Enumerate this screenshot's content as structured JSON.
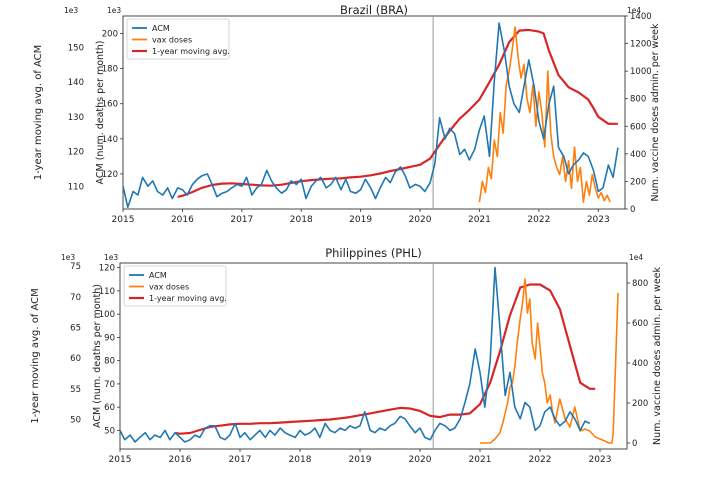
{
  "chart_data": [
    {
      "type": "line",
      "title": "Brazil (BRA)",
      "xlabel": "",
      "ylabel_outer": "1-year moving avg. of ACM",
      "ylabel_left": "ACM (num. deaths per month)",
      "ylabel_right": "Num. vaccine doses admin. per week",
      "left_exponent": "1e3",
      "outer_exponent": "1e3",
      "right_exponent": "1e4",
      "xlim": [
        2015.0,
        2023.45
      ],
      "x_ticks": [
        2015,
        2016,
        2017,
        2018,
        2019,
        2020,
        2021,
        2022,
        2023
      ],
      "x_tick_labels": [
        "2015",
        "2016",
        "2017",
        "2018",
        "2019",
        "2020",
        "2021",
        "2022",
        "2023"
      ],
      "ylim_left": [
        100,
        210
      ],
      "y_ticks_left": [
        120,
        140,
        160,
        180,
        200
      ],
      "ylim_outer": [
        103.5,
        159
      ],
      "y_ticks_outer": [
        110,
        120,
        130,
        140,
        150
      ],
      "ylim_right": [
        0,
        1400
      ],
      "y_ticks_right": [
        0,
        200,
        400,
        600,
        800,
        1000,
        1200,
        1400
      ],
      "vline_x": 2020.22,
      "legend": [
        "ACM",
        "vax doses",
        "1-year moving avg."
      ],
      "legend_position": "top-left",
      "series": [
        {
          "name": "ACM",
          "axis": "left",
          "color": "#1f77b4",
          "x": [
            2015.0,
            2015.08,
            2015.17,
            2015.25,
            2015.33,
            2015.42,
            2015.5,
            2015.58,
            2015.67,
            2015.75,
            2015.83,
            2015.92,
            2016.0,
            2016.08,
            2016.17,
            2016.25,
            2016.33,
            2016.42,
            2016.5,
            2016.58,
            2016.67,
            2016.75,
            2016.83,
            2016.92,
            2017.0,
            2017.08,
            2017.17,
            2017.25,
            2017.33,
            2017.42,
            2017.5,
            2017.58,
            2017.67,
            2017.75,
            2017.83,
            2017.92,
            2018.0,
            2018.08,
            2018.17,
            2018.25,
            2018.33,
            2018.42,
            2018.5,
            2018.58,
            2018.67,
            2018.75,
            2018.83,
            2018.92,
            2019.0,
            2019.08,
            2019.17,
            2019.25,
            2019.33,
            2019.42,
            2019.5,
            2019.58,
            2019.67,
            2019.75,
            2019.83,
            2019.92,
            2020.0,
            2020.08,
            2020.17,
            2020.25,
            2020.33,
            2020.42,
            2020.5,
            2020.58,
            2020.67,
            2020.75,
            2020.83,
            2020.92,
            2021.0,
            2021.08,
            2021.17,
            2021.25,
            2021.33,
            2021.42,
            2021.5,
            2021.58,
            2021.67,
            2021.75,
            2021.83,
            2021.92,
            2022.0,
            2022.08,
            2022.17,
            2022.25,
            2022.33,
            2022.42,
            2022.5,
            2022.58,
            2022.67,
            2022.75,
            2022.83,
            2022.92,
            2023.0,
            2023.08,
            2023.17,
            2023.25,
            2023.33
          ],
          "values": [
            113,
            101,
            110,
            108,
            118,
            113,
            116,
            110,
            108,
            112,
            106,
            112,
            111,
            108,
            114,
            117,
            119,
            120,
            114,
            107,
            109,
            110,
            112,
            114,
            113,
            118,
            108,
            112,
            114,
            122,
            116,
            112,
            109,
            111,
            116,
            114,
            117,
            106,
            113,
            116,
            118,
            112,
            114,
            118,
            111,
            117,
            110,
            109,
            111,
            117,
            112,
            106,
            112,
            118,
            115,
            121,
            124,
            119,
            112,
            114,
            113,
            110,
            115,
            126,
            152,
            140,
            146,
            143,
            131,
            134,
            128,
            134,
            145,
            153,
            130,
            173,
            206,
            190,
            170,
            160,
            155,
            170,
            185,
            170,
            150,
            140,
            160,
            170,
            135,
            130,
            120,
            125,
            128,
            132,
            130,
            122,
            110,
            112,
            125,
            118,
            135
          ]
        },
        {
          "name": "vax doses",
          "axis": "right",
          "color": "#ff7f0e",
          "x": [
            2021.0,
            2021.05,
            2021.1,
            2021.15,
            2021.2,
            2021.25,
            2021.3,
            2021.35,
            2021.4,
            2021.45,
            2021.5,
            2021.55,
            2021.6,
            2021.65,
            2021.7,
            2021.75,
            2021.8,
            2021.85,
            2021.9,
            2021.95,
            2022.0,
            2022.05,
            2022.1,
            2022.15,
            2022.2,
            2022.25,
            2022.3,
            2022.35,
            2022.4,
            2022.45,
            2022.5,
            2022.55,
            2022.6,
            2022.65,
            2022.7,
            2022.75,
            2022.8,
            2022.85,
            2022.9,
            2022.95,
            2023.0,
            2023.05,
            2023.1,
            2023.15,
            2023.2
          ],
          "values": [
            50,
            200,
            120,
            300,
            220,
            500,
            380,
            700,
            550,
            900,
            1000,
            1150,
            1320,
            1100,
            950,
            1050,
            800,
            700,
            900,
            600,
            850,
            700,
            450,
            1000,
            550,
            380,
            300,
            250,
            380,
            200,
            350,
            150,
            450,
            200,
            300,
            50,
            200,
            100,
            250,
            150,
            80,
            120,
            60,
            100,
            50
          ]
        },
        {
          "name": "1-year moving avg.",
          "axis": "outer",
          "color": "#d62728",
          "x": [
            2015.92,
            2016.0,
            2016.17,
            2016.33,
            2016.5,
            2016.67,
            2016.83,
            2017.0,
            2017.17,
            2017.33,
            2017.5,
            2017.67,
            2017.83,
            2018.0,
            2018.17,
            2018.33,
            2018.5,
            2018.67,
            2018.83,
            2019.0,
            2019.17,
            2019.33,
            2019.5,
            2019.67,
            2019.83,
            2020.0,
            2020.17,
            2020.33,
            2020.5,
            2020.67,
            2020.83,
            2021.0,
            2021.17,
            2021.33,
            2021.5,
            2021.67,
            2021.83,
            2022.0,
            2022.08,
            2022.17,
            2022.33,
            2022.5,
            2022.67,
            2022.83,
            2022.92,
            2023.0,
            2023.17,
            2023.33
          ],
          "values": [
            107.0,
            107.3,
            108.4,
            109.6,
            110.4,
            110.8,
            110.9,
            110.7,
            110.5,
            110.3,
            110.2,
            110.5,
            111.0,
            111.5,
            111.8,
            112.0,
            112.2,
            112.3,
            112.6,
            112.8,
            113.2,
            113.7,
            114.4,
            115.0,
            115.6,
            116.2,
            118.0,
            122.0,
            126.0,
            129.5,
            132.0,
            135.0,
            140.0,
            145.0,
            151.5,
            154.8,
            155.0,
            154.5,
            154.0,
            149.0,
            142.0,
            138.5,
            137.0,
            135.0,
            132.5,
            130.0,
            128.0,
            128.0
          ]
        }
      ]
    },
    {
      "type": "line",
      "title": "Philippines (PHL)",
      "xlabel": "",
      "ylabel_outer": "1-year moving avg. of ACM",
      "ylabel_left": "ACM (num. deaths per month)",
      "ylabel_right": "Num. vaccine doses admin. per week",
      "left_exponent": "1e3",
      "outer_exponent": "1e3",
      "right_exponent": "1e4",
      "xlim": [
        2015.0,
        2023.45
      ],
      "x_ticks": [
        2015,
        2016,
        2017,
        2018,
        2019,
        2020,
        2021,
        2022,
        2023
      ],
      "x_tick_labels": [
        "2015",
        "2016",
        "2017",
        "2018",
        "2019",
        "2020",
        "2021",
        "2022",
        "2023"
      ],
      "ylim_left": [
        42,
        122
      ],
      "y_ticks_left": [
        50,
        60,
        70,
        80,
        90,
        100,
        110,
        120
      ],
      "ylim_outer": [
        45.2,
        75.5
      ],
      "y_ticks_outer": [
        50,
        55,
        60,
        65,
        70,
        75
      ],
      "ylim_right": [
        -30,
        900
      ],
      "y_ticks_right": [
        0,
        200,
        400,
        600,
        800
      ],
      "vline_x": 2020.22,
      "legend": [
        "ACM",
        "vax doses",
        "1-year moving avg."
      ],
      "legend_position": "top-left",
      "series": [
        {
          "name": "ACM",
          "axis": "left",
          "color": "#1f77b4",
          "x": [
            2015.0,
            2015.08,
            2015.17,
            2015.25,
            2015.33,
            2015.42,
            2015.5,
            2015.58,
            2015.67,
            2015.75,
            2015.83,
            2015.92,
            2016.0,
            2016.08,
            2016.17,
            2016.25,
            2016.33,
            2016.42,
            2016.5,
            2016.58,
            2016.67,
            2016.75,
            2016.83,
            2016.92,
            2017.0,
            2017.08,
            2017.17,
            2017.25,
            2017.33,
            2017.42,
            2017.5,
            2017.58,
            2017.67,
            2017.75,
            2017.83,
            2017.92,
            2018.0,
            2018.08,
            2018.17,
            2018.25,
            2018.33,
            2018.42,
            2018.5,
            2018.58,
            2018.67,
            2018.75,
            2018.83,
            2018.92,
            2019.0,
            2019.08,
            2019.17,
            2019.25,
            2019.33,
            2019.42,
            2019.5,
            2019.58,
            2019.67,
            2019.75,
            2019.83,
            2019.92,
            2020.0,
            2020.08,
            2020.17,
            2020.25,
            2020.33,
            2020.42,
            2020.5,
            2020.58,
            2020.67,
            2020.75,
            2020.83,
            2020.92,
            2021.0,
            2021.08,
            2021.17,
            2021.25,
            2021.33,
            2021.42,
            2021.5,
            2021.58,
            2021.67,
            2021.75,
            2021.83,
            2021.92,
            2022.0,
            2022.08,
            2022.17,
            2022.25,
            2022.33,
            2022.42,
            2022.5,
            2022.58,
            2022.67,
            2022.75,
            2022.83
          ],
          "values": [
            50,
            46,
            48,
            45,
            47,
            49,
            46,
            48,
            47,
            50,
            46,
            49,
            47,
            45,
            46,
            48,
            47,
            51,
            52,
            52,
            47,
            46,
            48,
            53,
            47,
            49,
            46,
            48,
            50,
            47,
            50,
            48,
            51,
            49,
            48,
            47,
            50,
            48,
            49,
            51,
            47,
            53,
            50,
            49,
            51,
            50,
            52,
            51,
            52,
            58,
            50,
            49,
            51,
            50,
            52,
            53,
            56,
            55,
            52,
            49,
            51,
            47,
            46,
            50,
            53,
            52,
            50,
            51,
            55,
            62,
            70,
            85,
            75,
            60,
            80,
            120,
            95,
            65,
            75,
            60,
            55,
            62,
            60,
            50,
            52,
            58,
            60,
            55,
            52,
            54,
            58,
            55,
            50,
            54,
            53
          ]
        },
        {
          "name": "vax doses",
          "axis": "right",
          "color": "#ff7f0e",
          "x": [
            2021.0,
            2021.08,
            2021.17,
            2021.25,
            2021.33,
            2021.38,
            2021.42,
            2021.46,
            2021.5,
            2021.54,
            2021.58,
            2021.62,
            2021.67,
            2021.71,
            2021.75,
            2021.79,
            2021.83,
            2021.87,
            2021.92,
            2021.96,
            2022.0,
            2022.04,
            2022.08,
            2022.12,
            2022.17,
            2022.21,
            2022.25,
            2022.33,
            2022.42,
            2022.5,
            2022.58,
            2022.67,
            2022.75,
            2022.83,
            2022.92,
            2023.0,
            2023.08,
            2023.15,
            2023.2,
            2023.22,
            2023.26,
            2023.3
          ],
          "values": [
            0,
            0,
            0,
            20,
            50,
            100,
            150,
            200,
            280,
            300,
            380,
            500,
            620,
            700,
            820,
            650,
            720,
            500,
            420,
            600,
            480,
            350,
            300,
            200,
            240,
            150,
            100,
            220,
            120,
            80,
            180,
            60,
            70,
            60,
            30,
            20,
            10,
            0,
            0,
            50,
            400,
            750
          ]
        },
        {
          "name": "1-year moving avg.",
          "axis": "outer",
          "color": "#d62728",
          "x": [
            2015.92,
            2016.0,
            2016.17,
            2016.33,
            2016.5,
            2016.67,
            2016.83,
            2017.0,
            2017.17,
            2017.33,
            2017.5,
            2017.67,
            2017.83,
            2018.0,
            2018.17,
            2018.33,
            2018.5,
            2018.67,
            2018.83,
            2019.0,
            2019.17,
            2019.33,
            2019.5,
            2019.67,
            2019.83,
            2020.0,
            2020.17,
            2020.33,
            2020.5,
            2020.67,
            2020.83,
            2021.0,
            2021.17,
            2021.33,
            2021.5,
            2021.67,
            2021.83,
            2022.0,
            2022.17,
            2022.33,
            2022.5,
            2022.67,
            2022.83,
            2022.92
          ],
          "values": [
            47.8,
            47.7,
            47.8,
            48.3,
            48.8,
            49.0,
            49.2,
            49.3,
            49.3,
            49.4,
            49.4,
            49.5,
            49.6,
            49.7,
            49.8,
            49.9,
            50.0,
            50.2,
            50.4,
            50.7,
            51.0,
            51.3,
            51.6,
            51.9,
            51.8,
            51.4,
            50.6,
            50.4,
            50.8,
            50.8,
            51.0,
            52.5,
            56.0,
            61.0,
            67.0,
            71.5,
            72.0,
            72.0,
            71.0,
            68.0,
            62.0,
            56.0,
            55.0,
            55.0
          ]
        }
      ]
    }
  ]
}
